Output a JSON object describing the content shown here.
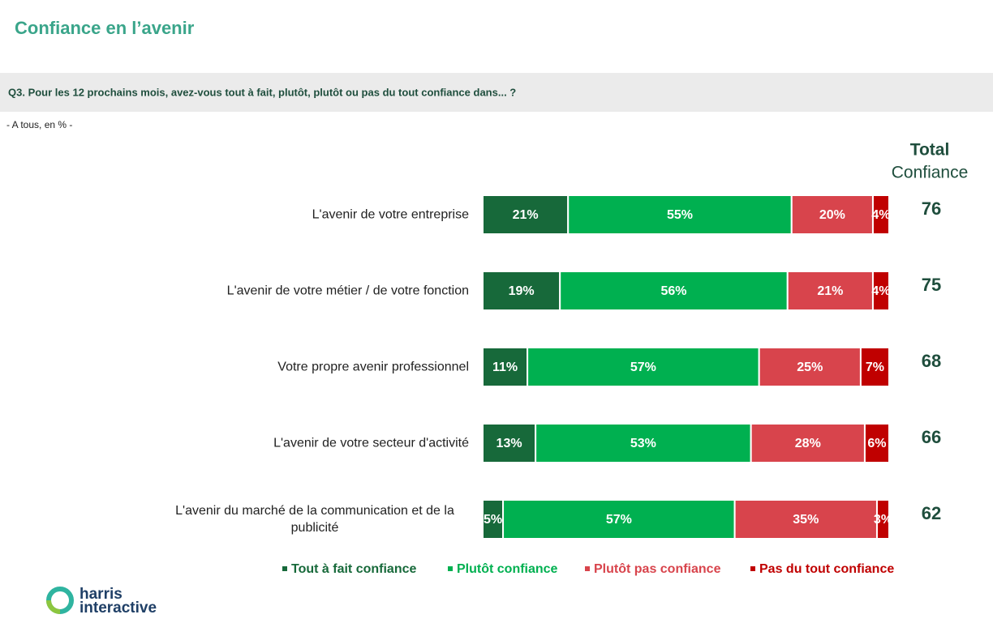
{
  "title": "Confiance en l’avenir",
  "question": "Q3. Pour les 12 prochains mois, avez-vous tout à fait, plutôt, plutôt ou pas du tout confiance dans... ?",
  "base": "- A tous, en % -",
  "logo": [
    "harris",
    "interactive"
  ],
  "chart_data": {
    "type": "stacked-bar-horizontal",
    "categories": [
      "L'avenir de votre entreprise",
      "L'avenir de votre métier / de votre fonction",
      "Votre propre avenir professionnel",
      "L'avenir de votre secteur d'activité",
      "L'avenir du marché de la communication et de la publicité"
    ],
    "xlim": [
      0,
      100
    ],
    "series": [
      {
        "name": "Tout à fait confiance",
        "color": "#17693a",
        "values": [
          21,
          19,
          11,
          13,
          5
        ],
        "value_labels": [
          "21%",
          "19%",
          "11%",
          "13%",
          "5%"
        ]
      },
      {
        "name": "Plutôt confiance",
        "color": "#00b050",
        "values": [
          55,
          56,
          57,
          53,
          57
        ],
        "value_labels": [
          "55%",
          "56%",
          "57%",
          "53%",
          "57%"
        ]
      },
      {
        "name": "Plutôt pas confiance",
        "color": "#d8444c",
        "values": [
          20,
          21,
          25,
          28,
          35
        ],
        "value_labels": [
          "20%",
          "21%",
          "25%",
          "28%",
          "35%"
        ]
      },
      {
        "name": "Pas du tout confiance",
        "color": "#c00000",
        "values": [
          4,
          4,
          7,
          6,
          3
        ],
        "value_labels": [
          "4%",
          "4%",
          "7%",
          "6%",
          "3%"
        ]
      }
    ],
    "totals": {
      "header": [
        "Total",
        "Confiance"
      ],
      "values": [
        76,
        75,
        68,
        66,
        62
      ]
    }
  }
}
